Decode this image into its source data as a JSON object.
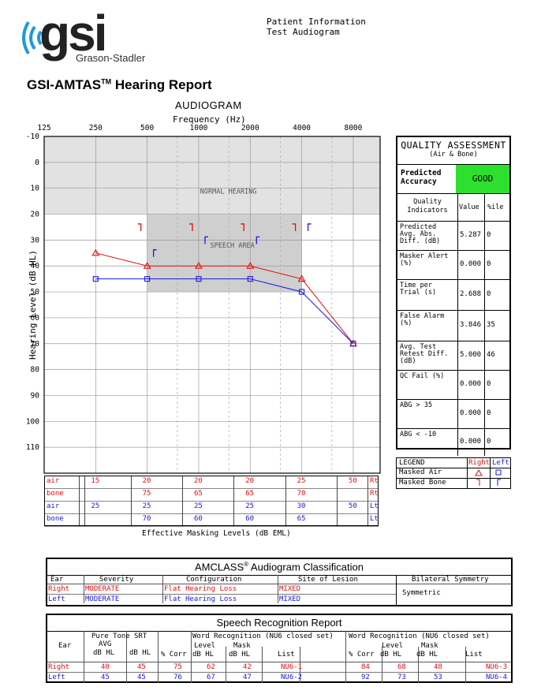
{
  "header": {
    "logo_text": "gsi",
    "logo_sub": "Grason-Stadler",
    "info_line1": "Patient Information",
    "info_line2": "Test Audiogram",
    "report_title": "GSI-AMTAS",
    "report_title_tm": "TM",
    "report_title_rest": " Hearing Report"
  },
  "audiogram": {
    "title": "AUDIOGRAM",
    "xlabel": "Frequency (Hz)",
    "ylabel": "Hearing Level (dB HL)",
    "normal_label": "NORMAL HEARING",
    "speech_label": "SPEECH AREA",
    "bottom_label": "Effective Masking Levels  (dB EML)"
  },
  "chart_data": {
    "type": "line",
    "x_ticks": [
      "125",
      "250",
      "500",
      "1000",
      "2000",
      "4000",
      "8000"
    ],
    "y_ticks": [
      "-10",
      "0",
      "10",
      "20",
      "30",
      "40",
      "50",
      "60",
      "70",
      "80",
      "90",
      "100",
      "110"
    ],
    "ylim": [
      -10,
      120
    ],
    "series": [
      {
        "name": "Right air",
        "color": "#d11",
        "x": [
          250,
          500,
          1000,
          2000,
          4000,
          8000
        ],
        "values": [
          35,
          40,
          40,
          40,
          45,
          70
        ],
        "marker": "triangle"
      },
      {
        "name": "Left air",
        "color": "#1a1adc",
        "x": [
          250,
          500,
          1000,
          2000,
          4000,
          8000
        ],
        "values": [
          45,
          45,
          45,
          45,
          50,
          70
        ],
        "marker": "square"
      },
      {
        "name": "Right masked bone",
        "color": "#d11",
        "x": [
          500,
          1000,
          2000,
          4000
        ],
        "values": [
          25,
          25,
          25,
          25
        ],
        "marker": "bracket-right"
      },
      {
        "name": "Left masked bone",
        "color": "#1a1adc",
        "x": [
          500,
          1000,
          2000,
          4000
        ],
        "values": [
          35,
          30,
          30,
          25
        ],
        "marker": "bracket-left"
      }
    ]
  },
  "masking_table": {
    "rows": [
      {
        "label": "air",
        "color": "red",
        "values": [
          "15",
          "20",
          "20",
          "20",
          "25",
          "50"
        ],
        "ear": "Rt"
      },
      {
        "label": "bone",
        "color": "red",
        "values": [
          "",
          "75",
          "65",
          "65",
          "70",
          ""
        ],
        "ear": "Rt"
      },
      {
        "label": "air",
        "color": "blue",
        "values": [
          "25",
          "25",
          "25",
          "25",
          "30",
          "50"
        ],
        "ear": "Lt"
      },
      {
        "label": "bone",
        "color": "blue",
        "values": [
          "",
          "70",
          "60",
          "60",
          "65",
          ""
        ],
        "ear": "Lt"
      }
    ]
  },
  "quality": {
    "title": "QUALITY ASSESSMENT",
    "subtitle": "(Air & Bone)",
    "predicted_label": "Predicted Accuracy",
    "predicted_value": "GOOD",
    "good_color": "#2ee02e",
    "col_indicators": "Quality Indicators",
    "col_value": "Value",
    "col_pct": "%ile",
    "rows": [
      {
        "label": "Predicted Avg. Abs. Diff. (dB)",
        "value": "5.287",
        "pct": "0"
      },
      {
        "label": "Masker Alert (%)",
        "value": "0.000",
        "pct": "0"
      },
      {
        "label": "Time per Trial (s)",
        "value": "2.688",
        "pct": "0"
      },
      {
        "label": "False Alarm (%)",
        "value": "3.846",
        "pct": "35"
      },
      {
        "label": "Avg. Test Retest Diff. (dB)",
        "value": "5.000",
        "pct": "46"
      },
      {
        "label": "QC Fail (%)",
        "value": "0.000",
        "pct": "0"
      },
      {
        "label": "ABG > 35",
        "value": "0.000",
        "pct": "0"
      },
      {
        "label": "ABG < -10",
        "value": "0.000",
        "pct": "0"
      }
    ]
  },
  "legend": {
    "title": "LEGEND",
    "right": "Right",
    "left": "Left",
    "masked_air": "Masked Air",
    "masked_bone": "Masked Bone"
  },
  "amclass": {
    "title": "AMCLASS",
    "title_rest": " Audiogram Classification",
    "reg": "®",
    "headers": [
      "Ear",
      "Severity",
      "Configuration",
      "Site of Lesion",
      "Bilateral Symmetry"
    ],
    "right": [
      "Right",
      "MODERATE",
      "Flat Hearing Loss",
      "MIXED"
    ],
    "left": [
      "Left",
      "MODERATE",
      "Flat Hearing Loss",
      "MIXED"
    ],
    "symmetry": "Symmetric"
  },
  "speech": {
    "title": "Speech Recognition Report",
    "h_ear": "Ear",
    "h_pta1": "Pure Tone",
    "h_pta2": "AVG",
    "h_pta3": "dB HL",
    "h_srt1": "SRT",
    "h_srt2": "dB HL",
    "h_wr1": "Word Recognition (NU6 closed set)",
    "h_wr2": "Word Recognition (NU6 closed set)",
    "h_corr": "% Corr",
    "h_level1": "Level",
    "h_level2": "dB HL",
    "h_mask1": "Mask",
    "h_mask2": "dB HL",
    "h_list": "List",
    "right": [
      "Right",
      "40",
      "45",
      "75",
      "62",
      "42",
      "NU6-1",
      "84",
      "68",
      "48",
      "NU6-3"
    ],
    "left": [
      "Left",
      "45",
      "45",
      "76",
      "67",
      "47",
      "NU6-2",
      "92",
      "73",
      "53",
      "NU6-4"
    ]
  }
}
